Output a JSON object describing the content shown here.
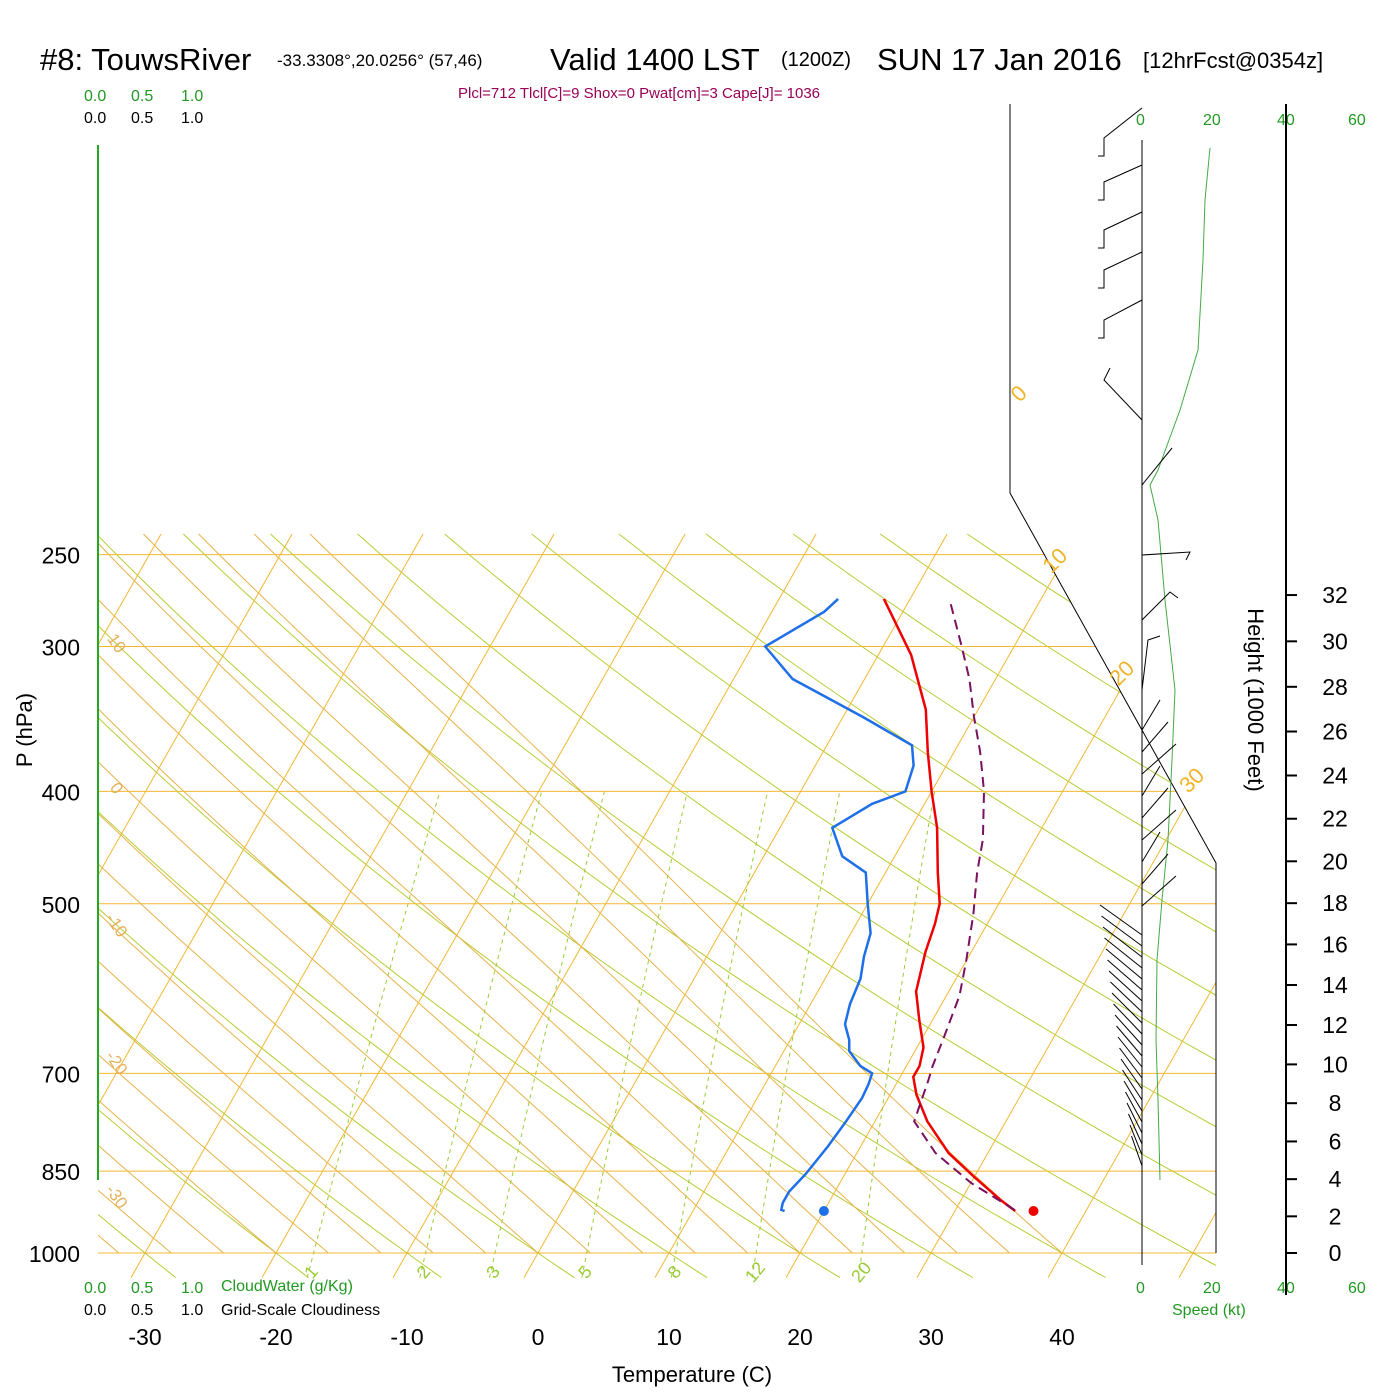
{
  "header": {
    "station": "#8: TouwsRiver",
    "coords": "-33.3308°,20.0256° (57,46)",
    "valid": "Valid 1400 LST",
    "utc": "(1200Z)",
    "date": "SUN 17 Jan 2016",
    "forecast": "[12hrFcst@0354z]",
    "params": "Plcl=712 Tlcl[C]=9 Shox=0 Pwat[cm]=3 Cape[J]= 1036"
  },
  "cloud_scale_top": {
    "green": [
      "0.0",
      "0.5",
      "1.0"
    ],
    "black": [
      "0.0",
      "0.5",
      "1.0"
    ]
  },
  "cloud_scale_bottom": {
    "green": [
      "0.0",
      "0.5",
      "1.0"
    ],
    "green_label": "CloudWater (g/Kg)",
    "black": [
      "0.0",
      "0.5",
      "1.0"
    ],
    "black_label": "Grid-Scale Cloudiness"
  },
  "speed_scale": {
    "top": [
      "0",
      "20",
      "40",
      "60"
    ],
    "bottom": [
      "0",
      "20",
      "40",
      "60"
    ],
    "label": "Speed (kt)"
  },
  "colors": {
    "isotherm": "#f0b429",
    "mixing": "#99cc33",
    "adiabat": "#e0c040",
    "temperature": "#ee0000",
    "dewpoint": "#1e6fe8",
    "parcel": "#7a1060",
    "wind_speed": "#44aa44",
    "axis_green": "#22aa22"
  },
  "chart_data": {
    "type": "line",
    "title": "Valid 1400 LST (1200Z) SUN 17 Jan 2016",
    "xlabel": "Temperature (C)",
    "ylabel": "P (hPa)",
    "right_label": "Height (1000 Feet)",
    "xlim": [
      -33.5,
      52
    ],
    "pressure_ticks": [
      250,
      300,
      400,
      500,
      700,
      850,
      1000
    ],
    "temperature_ticks": [
      -30,
      -20,
      -10,
      0,
      10,
      20,
      30,
      40
    ],
    "height_ticks_kft": [
      0,
      2,
      4,
      6,
      8,
      10,
      12,
      14,
      16,
      18,
      20,
      22,
      24,
      26,
      28,
      30,
      32
    ],
    "isotherm_labels": [
      {
        "text": "0",
        "t": 0
      },
      {
        "text": "10",
        "t": 10
      },
      {
        "text": "20",
        "t": 20
      },
      {
        "text": "30",
        "t": 30
      }
    ],
    "adiabat_labels": [
      {
        "text": "10",
        "p": 300
      },
      {
        "text": "0",
        "p": 400
      },
      {
        "text": "-10",
        "p": 525
      },
      {
        "text": "-20",
        "p": 690
      },
      {
        "text": "-30",
        "p": 900
      }
    ],
    "mixing_ratio_labels": [
      "1",
      "2",
      "3",
      "5",
      "8",
      "12",
      "20"
    ],
    "series": [
      {
        "name": "temperature",
        "points": [
          [
            34.6,
            920
          ],
          [
            33,
            900
          ],
          [
            30,
            860
          ],
          [
            27,
            820
          ],
          [
            24,
            770
          ],
          [
            22,
            730
          ],
          [
            21,
            705
          ],
          [
            21,
            690
          ],
          [
            20.5,
            665
          ],
          [
            19,
            630
          ],
          [
            17.5,
            595
          ],
          [
            16.5,
            550
          ],
          [
            16,
            520
          ],
          [
            15.5,
            500
          ],
          [
            14,
            470
          ],
          [
            12,
            430
          ],
          [
            10,
            400
          ],
          [
            8,
            370
          ],
          [
            6,
            340
          ],
          [
            2.5,
            305
          ],
          [
            -2,
            273
          ]
        ]
      },
      {
        "name": "dewpoint",
        "points": [
          [
            17,
            920
          ],
          [
            16.7,
            918
          ],
          [
            16.5,
            905
          ],
          [
            16.5,
            885
          ],
          [
            17,
            855
          ],
          [
            17.5,
            810
          ],
          [
            17.8,
            770
          ],
          [
            18,
            735
          ],
          [
            17.9,
            715
          ],
          [
            17.7,
            700
          ],
          [
            16.5,
            690
          ],
          [
            15,
            670
          ],
          [
            14.5,
            655
          ],
          [
            13.5,
            635
          ],
          [
            13,
            610
          ],
          [
            12.7,
            580
          ],
          [
            12,
            555
          ],
          [
            11.5,
            530
          ],
          [
            10,
            500
          ],
          [
            8.5,
            470
          ],
          [
            6,
            455
          ],
          [
            4,
            430
          ],
          [
            6,
            410
          ],
          [
            8,
            400
          ],
          [
            7.5,
            380
          ],
          [
            6.5,
            365
          ],
          [
            1.5,
            345
          ],
          [
            -5.5,
            320
          ],
          [
            -9,
            300
          ],
          [
            -6,
            280
          ],
          [
            -5.5,
            273
          ]
        ]
      },
      {
        "name": "parcel",
        "points": [
          [
            34.5,
            918
          ],
          [
            30,
            870
          ],
          [
            26,
            820
          ],
          [
            23,
            770
          ],
          [
            22.3,
            710
          ],
          [
            22,
            690
          ],
          [
            21.6,
            650
          ],
          [
            21,
            600
          ],
          [
            20,
            560
          ],
          [
            18.5,
            510
          ],
          [
            17,
            470
          ],
          [
            16,
            440
          ],
          [
            14,
            400
          ],
          [
            12,
            370
          ],
          [
            10,
            345
          ],
          [
            8,
            320
          ],
          [
            6,
            300
          ],
          [
            3,
            273
          ]
        ]
      }
    ],
    "surface_points": [
      {
        "name": "temperature",
        "t": 36,
        "p": 920
      },
      {
        "name": "dewpoint",
        "t": 20,
        "p": 920
      }
    ]
  }
}
